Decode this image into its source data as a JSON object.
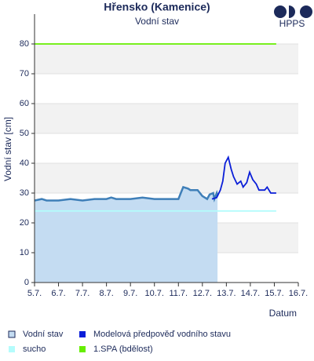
{
  "chart_data": {
    "type": "line",
    "title": "Hřensko (Kamenice)",
    "subtitle": "Vodní stav",
    "brand": "HPPS",
    "y_label": "Vodní stav [cm]",
    "x_label": "Datum",
    "xlim": [
      5,
      16
    ],
    "ylim": [
      0,
      90
    ],
    "xticks": [
      {
        "value": 5,
        "label": "5.7."
      },
      {
        "value": 6,
        "label": "6.7."
      },
      {
        "value": 7,
        "label": "7.7."
      },
      {
        "value": 8,
        "label": "8.7."
      },
      {
        "value": 9,
        "label": "9.7."
      },
      {
        "value": 10,
        "label": "10.7."
      },
      {
        "value": 11,
        "label": "11.7."
      },
      {
        "value": 12,
        "label": "12.7."
      },
      {
        "value": 13,
        "label": "13.7."
      },
      {
        "value": 14,
        "label": "14.7."
      },
      {
        "value": 15,
        "label": "15.7."
      },
      {
        "value": 16,
        "label": "16.7."
      }
    ],
    "yticks": [
      0,
      10,
      20,
      30,
      40,
      50,
      60,
      70,
      80
    ],
    "alternate_bands": true,
    "series": [
      {
        "name": "Vodní stav",
        "style": "area",
        "color": "#3f7fb8",
        "fill": "#c4dcf2",
        "x": [
          5.0,
          5.3,
          5.5,
          6.0,
          6.5,
          7.0,
          7.5,
          8.0,
          8.2,
          8.4,
          9.0,
          9.5,
          10.0,
          10.5,
          11.0,
          11.1,
          11.2,
          11.4,
          11.5,
          11.8,
          12.0,
          12.2,
          12.3,
          12.45,
          12.5,
          12.6,
          12.63
        ],
        "values": [
          27.5,
          28,
          27.5,
          27.5,
          28,
          27.5,
          28,
          28,
          28.5,
          28,
          28,
          28.5,
          28,
          28,
          28,
          30,
          32,
          31.5,
          31,
          31,
          29,
          28,
          29.5,
          30,
          28,
          30,
          29
        ]
      },
      {
        "name": "Modelová předpověď vodního stavu",
        "style": "line",
        "color": "#0a1ed8",
        "x": [
          12.4,
          12.6,
          12.75,
          12.85,
          12.95,
          13.08,
          13.2,
          13.3,
          13.45,
          13.6,
          13.7,
          13.85,
          13.97,
          14.1,
          14.25,
          14.36,
          14.6,
          14.7,
          14.85,
          15.08
        ],
        "values": [
          28,
          28.5,
          31,
          34,
          40,
          42,
          38,
          35.5,
          33,
          34,
          32,
          33.5,
          37,
          34.5,
          33,
          31,
          31,
          32,
          30,
          30
        ]
      },
      {
        "name": "sucho",
        "style": "line",
        "color": "#b4fcfc",
        "x": [
          5,
          15.08
        ],
        "values": [
          24,
          24
        ]
      },
      {
        "name": "1.SPA (bdělost)",
        "style": "line",
        "color": "#66ee00",
        "x": [
          5,
          15.08
        ],
        "values": [
          80,
          80
        ]
      }
    ]
  }
}
